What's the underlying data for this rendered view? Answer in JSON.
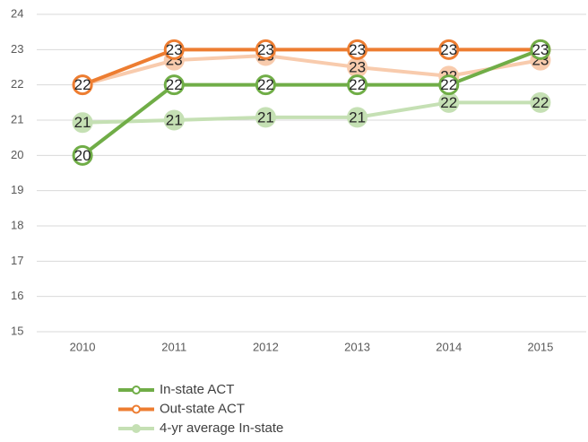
{
  "chart_data": {
    "type": "line",
    "categories": [
      "2010",
      "2011",
      "2012",
      "2013",
      "2014",
      "2015"
    ],
    "series": [
      {
        "name": "In-state ACT",
        "color": "#70ad47",
        "values": [
          20,
          22,
          22,
          22,
          22,
          23
        ]
      },
      {
        "name": "Out-state ACT",
        "color": "#ed7d31",
        "values": [
          22,
          23,
          23,
          23,
          23,
          23
        ]
      },
      {
        "name": "4-yr average In-state",
        "color": "#c5e0b4",
        "values": [
          20.93,
          21,
          21.08,
          21.08,
          21.5,
          21.5
        ],
        "value_labels": [
          "21",
          "21",
          "21",
          "21",
          "22",
          "22"
        ]
      },
      {
        "color": "#f8cbad",
        "values": [
          22,
          22.7,
          22.83,
          22.5,
          22.25,
          22.7
        ],
        "value_labels": [
          "22",
          "23",
          "23",
          "23",
          "22",
          "23"
        ]
      }
    ],
    "ylim": [
      15,
      24
    ],
    "yticks": [
      15,
      16,
      17,
      18,
      19,
      20,
      21,
      22,
      23,
      24
    ],
    "grid": true,
    "legend": "bottom"
  }
}
